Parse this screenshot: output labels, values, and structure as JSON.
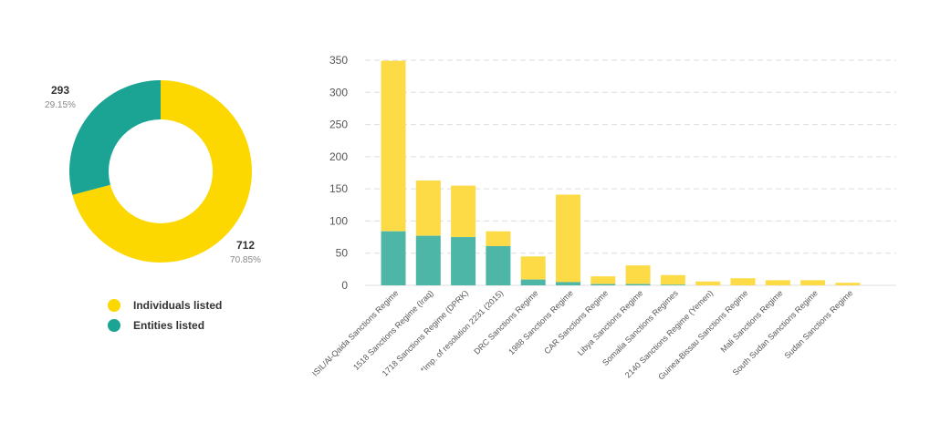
{
  "colors": {
    "individuals": "#fcd700",
    "individuals_bar": "#fcdb46",
    "entities": "#1ba493",
    "entities_bar": "#4db6a7",
    "grid": "#dddddd"
  },
  "legend": {
    "individuals_label": "Individuals listed",
    "entities_label": "Entities listed"
  },
  "chart_data": [
    {
      "type": "pie",
      "variant": "donut",
      "slices": [
        {
          "name": "Individuals listed",
          "value": 712,
          "percent_label": "70.85%"
        },
        {
          "name": "Entities listed",
          "value": 293,
          "percent_label": "29.15%"
        }
      ]
    },
    {
      "type": "bar",
      "stacked": true,
      "ylim": [
        0,
        350
      ],
      "yticks": [
        "0",
        "50",
        "100",
        "150",
        "200",
        "250",
        "300",
        "350"
      ],
      "grid": true,
      "categories": [
        "ISIL/Al-Qaida Sanctions Regime",
        "1518 Sanctions Regime (Iraq)",
        "1718 Sanctions Regime (DPRK)",
        "*Imp. of resolution 2231 (2015)",
        "DRC Sanctions Regime",
        "1988 Sanctions Regime",
        "CAR Sanctions Regime",
        "Libya Sanctions Regime",
        "Somalia Sanctions Regimes",
        "2140 Sanctions Regime (Yemen)",
        "Guinea-Bissau Sanctions Regime",
        "Mali Sanctions Regime",
        "South Sudan Sanctions Regime",
        "Sudan Sanctions Regime"
      ],
      "series": [
        {
          "name": "Entities listed",
          "values": [
            84,
            77,
            75,
            61,
            9,
            5,
            2,
            2,
            1,
            0,
            0,
            0,
            0,
            0
          ]
        },
        {
          "name": "Individuals listed",
          "values": [
            265,
            86,
            80,
            23,
            36,
            136,
            12,
            29,
            15,
            6,
            11,
            8,
            8,
            4
          ]
        }
      ]
    }
  ]
}
